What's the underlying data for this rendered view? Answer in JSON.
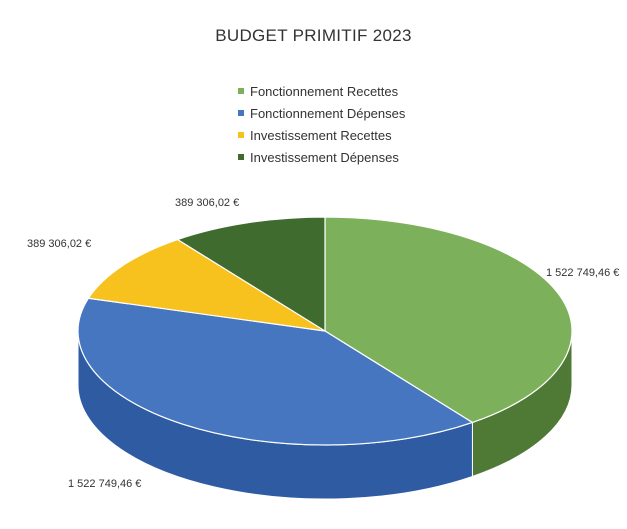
{
  "chart_data": {
    "type": "pie",
    "title": "BUDGET PRIMITIF 2023",
    "three_d": true,
    "legend_position": "top",
    "categories": [
      "Fonctionnement Recettes",
      "Fonctionnement Dépenses",
      "Investissement Recettes",
      "Investissement Dépenses"
    ],
    "values": [
      1522749.46,
      1522749.46,
      389306.02,
      389306.02
    ],
    "data_labels": [
      "1 522 749,46 €",
      "1 522 749,46 €",
      "389 306,02 €",
      "389 306,02 €"
    ],
    "colors": [
      "#7db05a",
      "#4676c0",
      "#f7c21d",
      "#3f6b2f"
    ],
    "side_colors": [
      "#4f7a35",
      "#2f5ba3",
      "#c79a10",
      "#2c4e20"
    ]
  }
}
